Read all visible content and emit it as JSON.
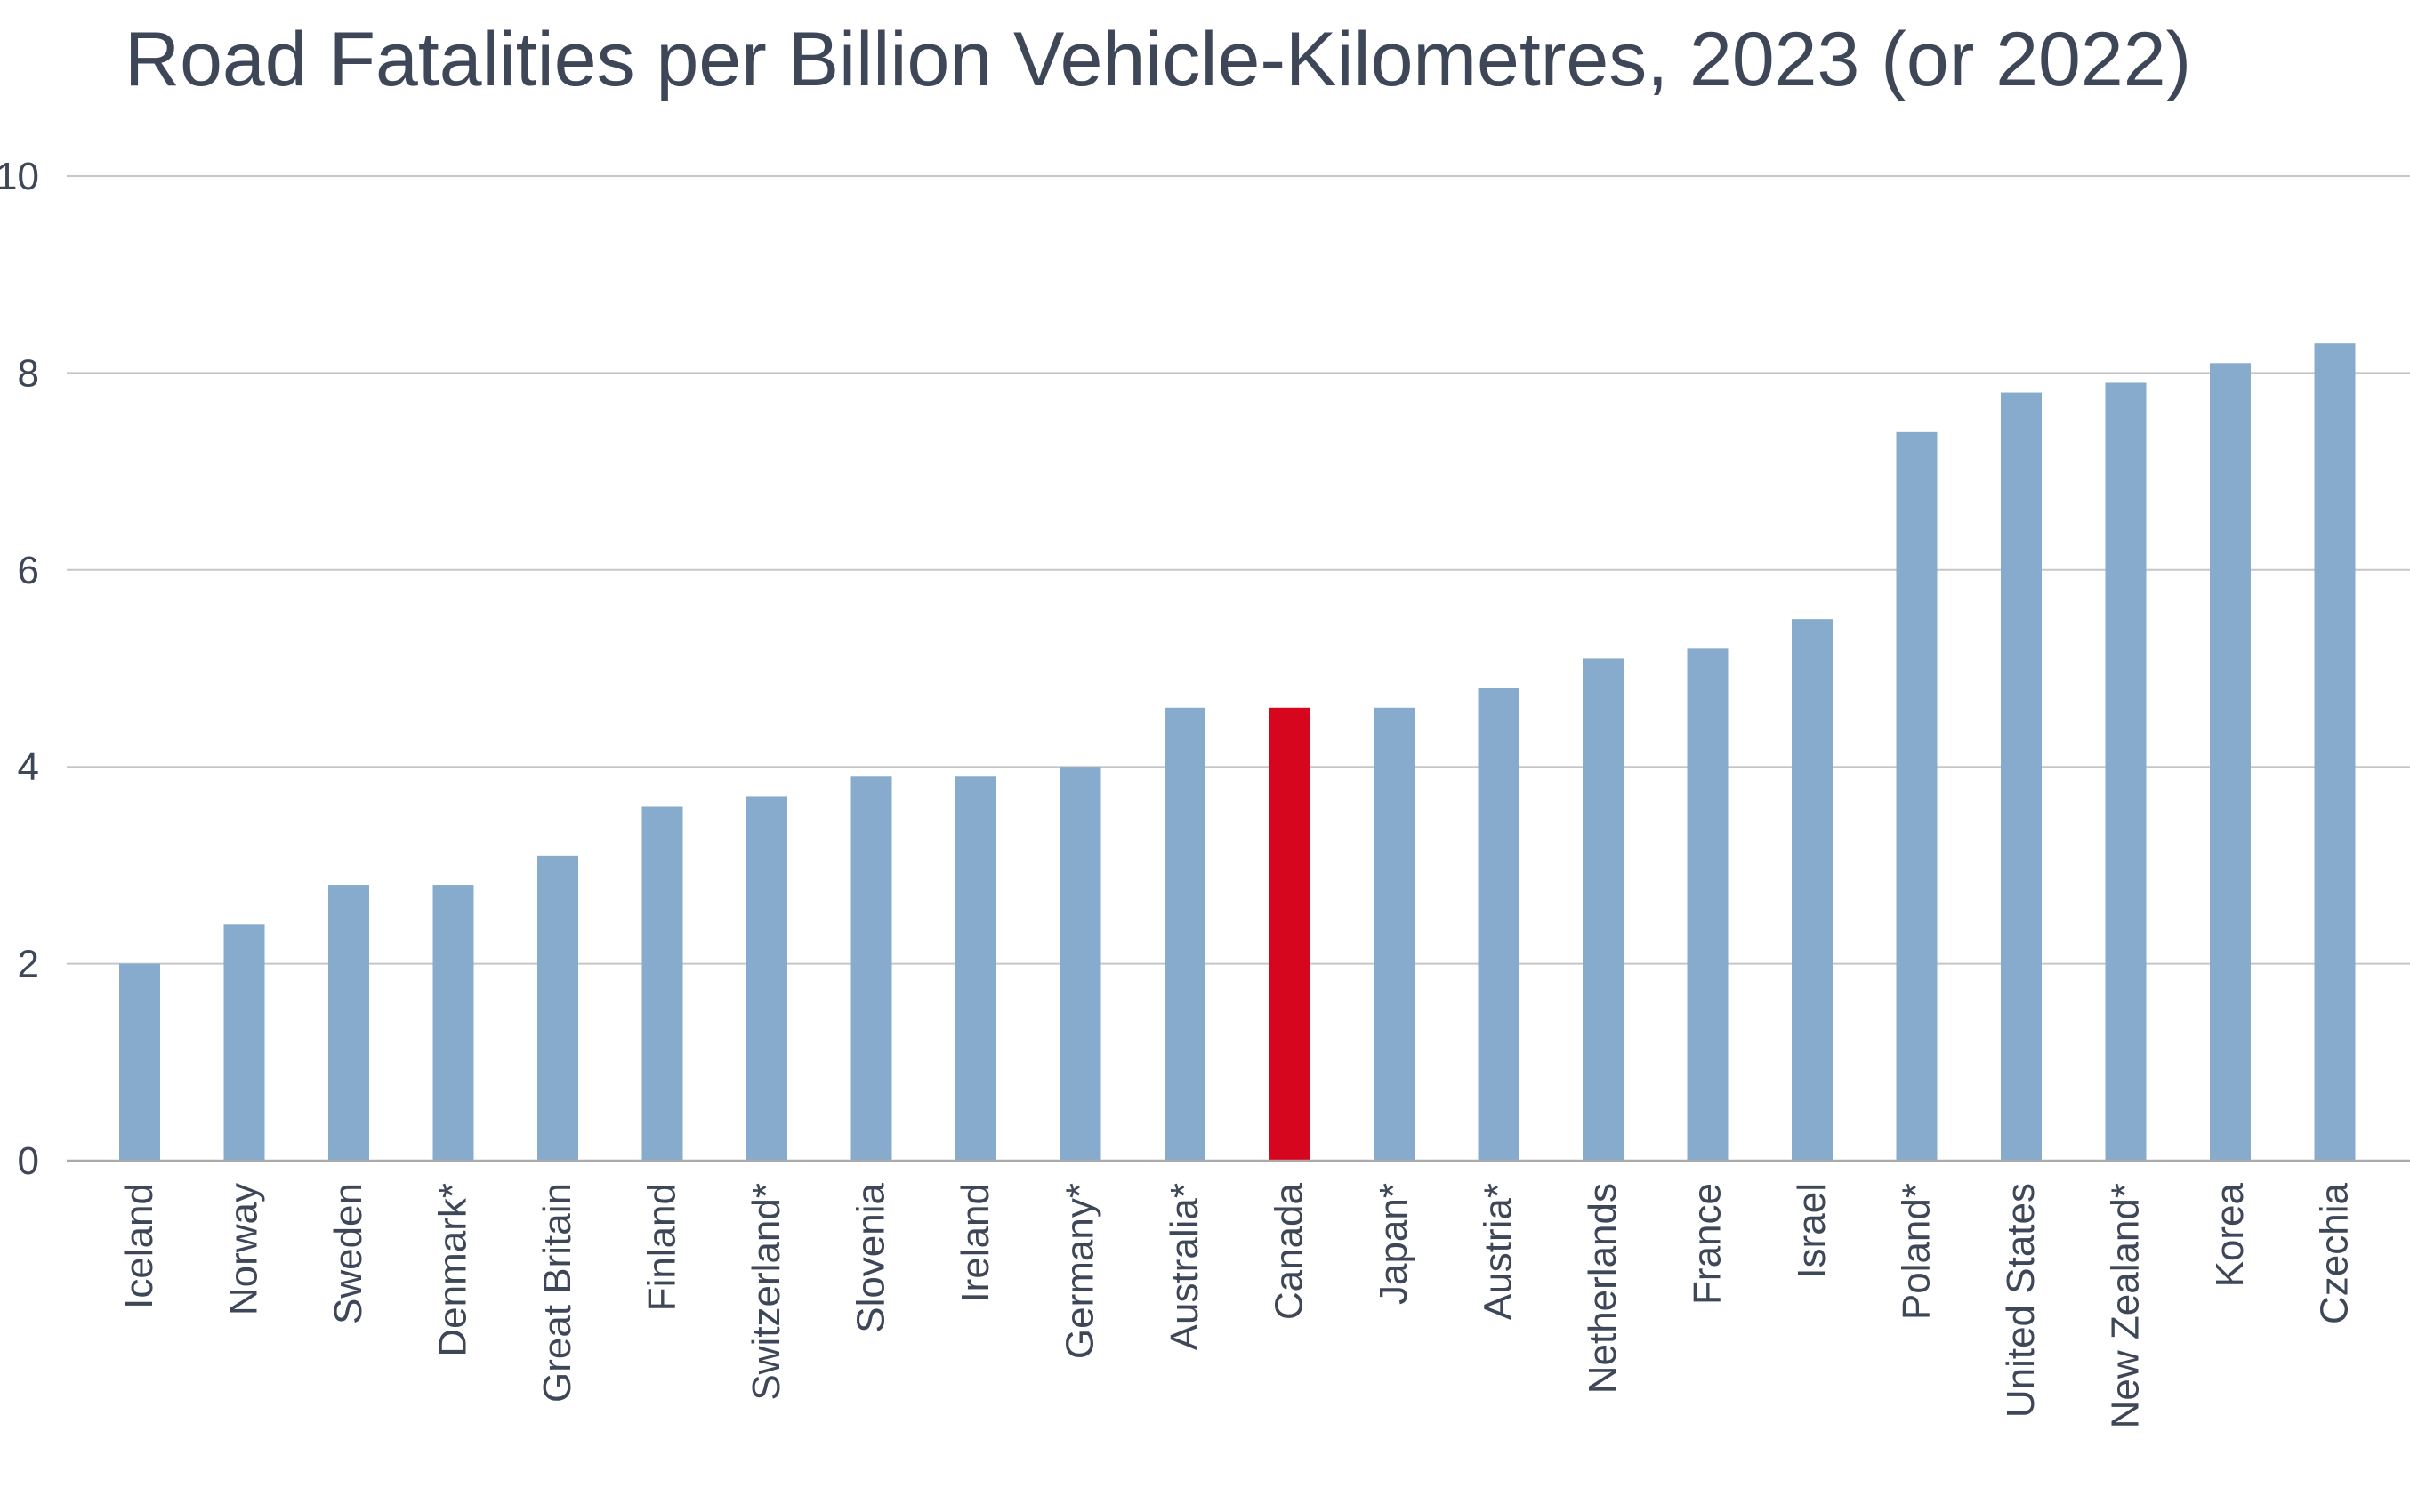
{
  "chart_data": {
    "type": "bar",
    "title": "Road Fatalities per Billion Vehicle-Kilometres, 2023 (or 2022)",
    "xlabel": "",
    "ylabel": "",
    "ylim": [
      0,
      10
    ],
    "yticks": [
      0,
      2,
      4,
      6,
      8,
      10
    ],
    "grid": true,
    "legend": "none",
    "categories": [
      "Iceland",
      "Norway",
      "Sweden",
      "Denmark*",
      "Great Britain",
      "Finland",
      "Switzerland*",
      "Slovenia",
      "Ireland",
      "Germany*",
      "Australia*",
      "Canada",
      "Japan*",
      "Austria*",
      "Netherlands",
      "France",
      "Israel",
      "Poland*",
      "United States",
      "New Zealand*",
      "Korea",
      "Czechia"
    ],
    "values": [
      2.0,
      2.4,
      2.8,
      2.8,
      3.1,
      3.6,
      3.7,
      3.9,
      3.9,
      4.0,
      4.6,
      4.6,
      4.6,
      4.8,
      5.1,
      5.2,
      5.5,
      7.4,
      7.8,
      7.9,
      8.1,
      8.3
    ],
    "highlight": "Canada",
    "colors": {
      "bar": "#86abcc",
      "highlight": "#d7061f",
      "grid": "#c6c6c6",
      "axis": "#a9a9a9",
      "text": "#3d4757"
    }
  }
}
